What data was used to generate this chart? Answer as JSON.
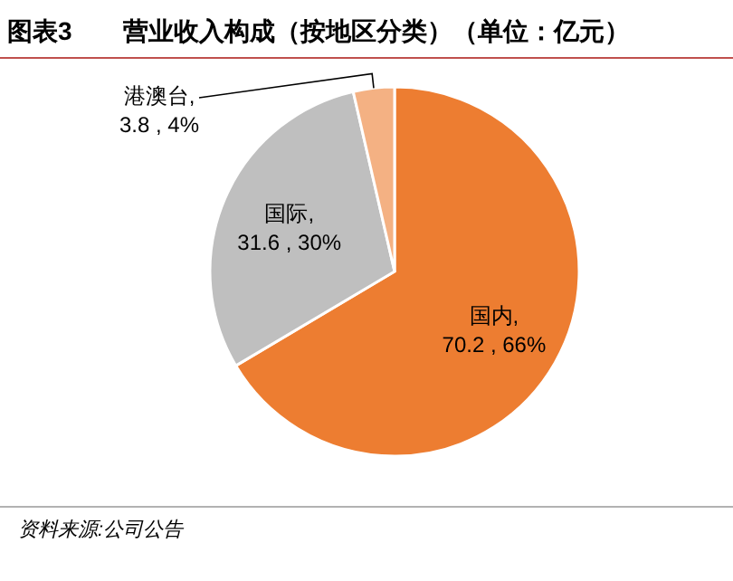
{
  "chart_data": {
    "type": "pie",
    "title": "图表3　　营业收入构成（按地区分类）（单位：亿元）",
    "categories": [
      "国内",
      "国际",
      "港澳台"
    ],
    "values": [
      70.2,
      31.6,
      3.8
    ],
    "value_labels": [
      ",\n70.2 , 66%",
      ",\n31.6 , 30%",
      ",\n3.8 , 4%"
    ],
    "colors": [
      "#ed7d31",
      "#bfbfbf",
      "#f4b183"
    ],
    "annotations": [
      "资料来源:公司公告"
    ]
  }
}
